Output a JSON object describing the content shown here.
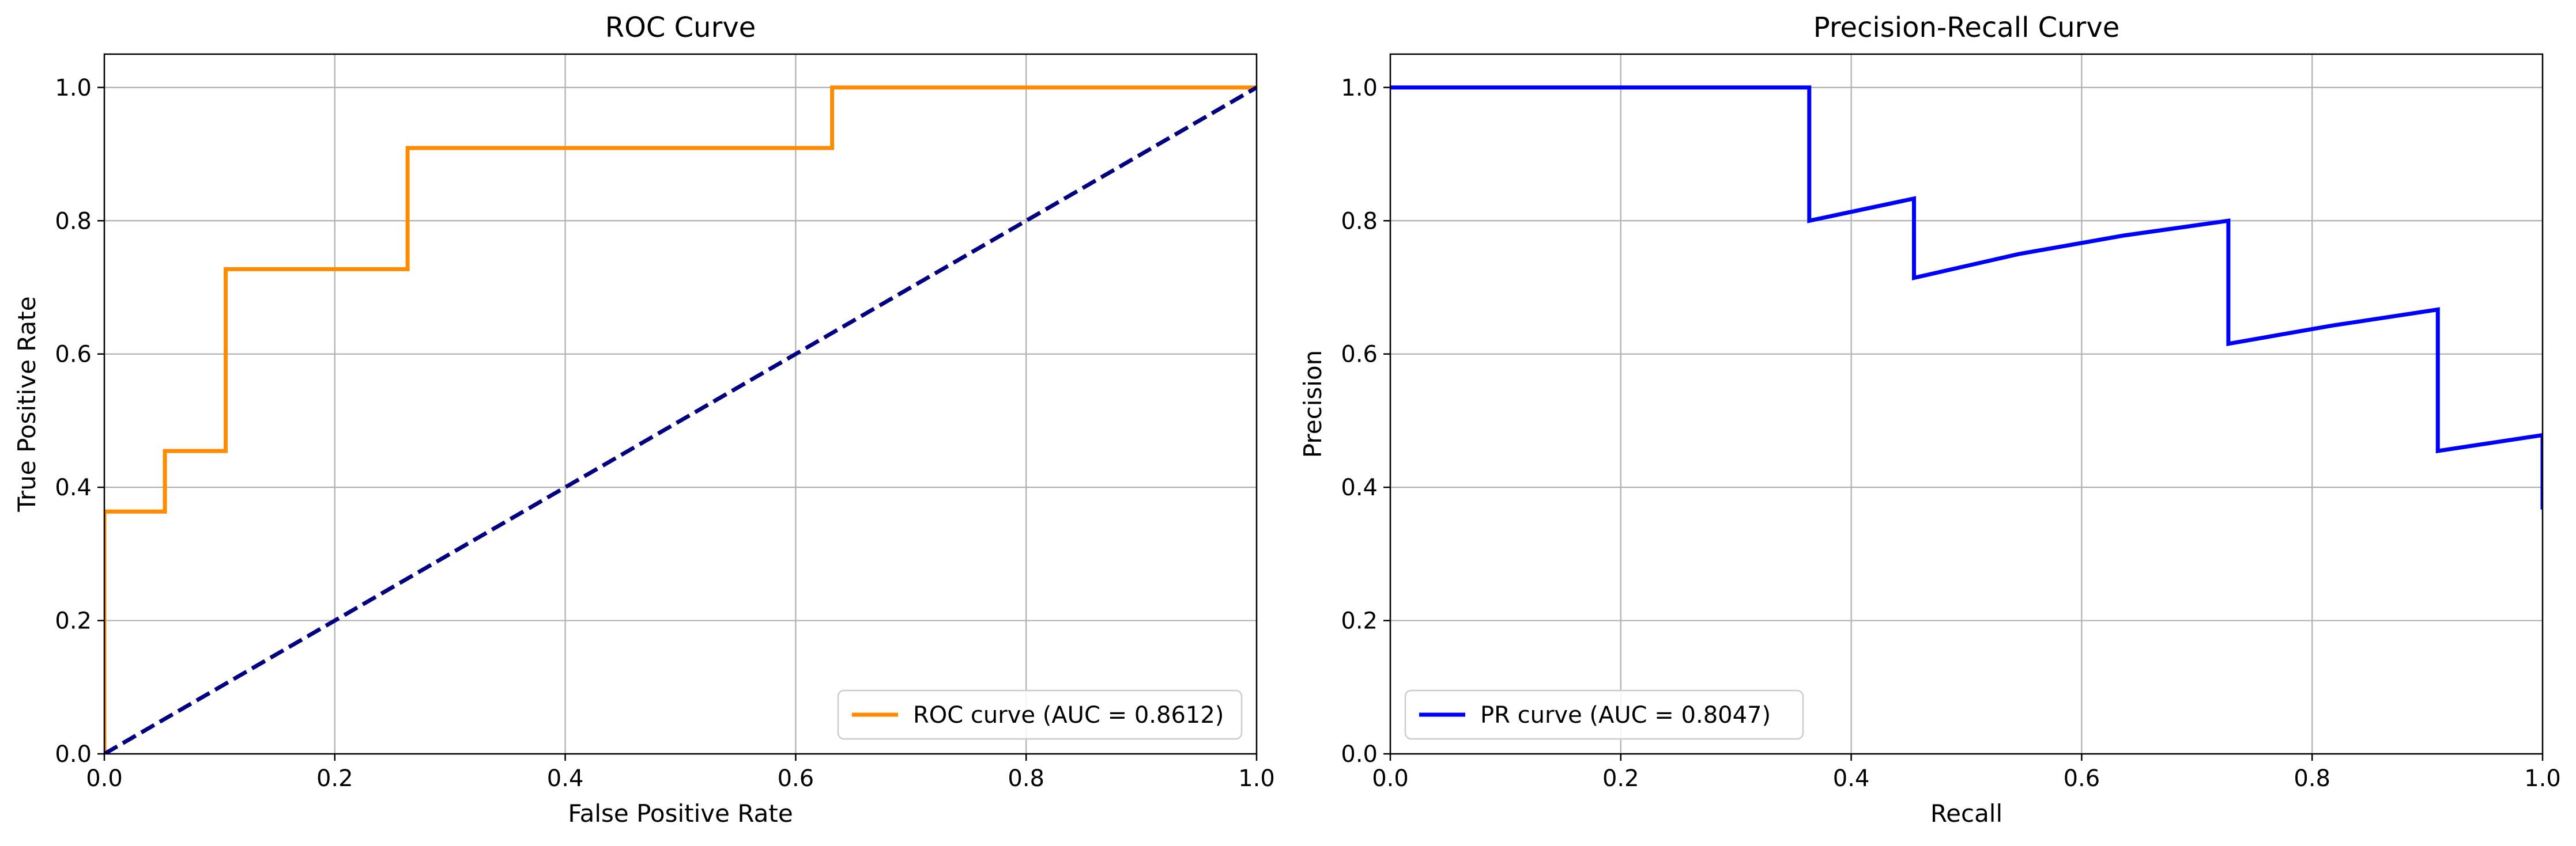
{
  "chart_data": [
    {
      "type": "line",
      "title": "ROC Curve",
      "xlabel": "False Positive Rate",
      "ylabel": "True Positive Rate",
      "xlim": [
        0,
        1
      ],
      "ylim": [
        0,
        1.05
      ],
      "xticks": [
        "0.0",
        "0.2",
        "0.4",
        "0.6",
        "0.8",
        "1.0"
      ],
      "yticks": [
        "0.0",
        "0.2",
        "0.4",
        "0.6",
        "0.8",
        "1.0"
      ],
      "grid": true,
      "legend_position": "lower-right",
      "series": [
        {
          "name": "ROC curve (AUC = 0.8612)",
          "color": "#ff8c00",
          "style": "solid",
          "x": [
            0.0,
            0.0,
            0.0526,
            0.0526,
            0.1053,
            0.1053,
            0.2632,
            0.2632,
            0.6316,
            0.6316,
            1.0
          ],
          "y": [
            0.0,
            0.3636,
            0.3636,
            0.4545,
            0.4545,
            0.7273,
            0.7273,
            0.9091,
            0.9091,
            1.0,
            1.0
          ]
        },
        {
          "color": "#000080",
          "style": "dashed",
          "x": [
            0.0,
            1.0
          ],
          "y": [
            0.0,
            1.0
          ]
        }
      ]
    },
    {
      "type": "line",
      "title": "Precision-Recall Curve",
      "xlabel": "Recall",
      "ylabel": "Precision",
      "xlim": [
        0,
        1
      ],
      "ylim": [
        0,
        1.05
      ],
      "xticks": [
        "0.0",
        "0.2",
        "0.4",
        "0.6",
        "0.8",
        "1.0"
      ],
      "yticks": [
        "0.0",
        "0.2",
        "0.4",
        "0.6",
        "0.8",
        "1.0"
      ],
      "grid": true,
      "legend_position": "lower-left",
      "series": [
        {
          "name": "PR curve (AUC = 0.8047)",
          "color": "#0000ff",
          "style": "solid",
          "x": [
            0.0,
            0.3636,
            0.3636,
            0.4545,
            0.4545,
            0.5455,
            0.6364,
            0.7273,
            0.7273,
            0.8182,
            0.9091,
            0.9091,
            1.0,
            1.0
          ],
          "y": [
            1.0,
            1.0,
            0.8,
            0.8333,
            0.7143,
            0.75,
            0.7778,
            0.8,
            0.6154,
            0.6429,
            0.6667,
            0.4545,
            0.4783,
            0.3667
          ]
        }
      ]
    }
  ]
}
